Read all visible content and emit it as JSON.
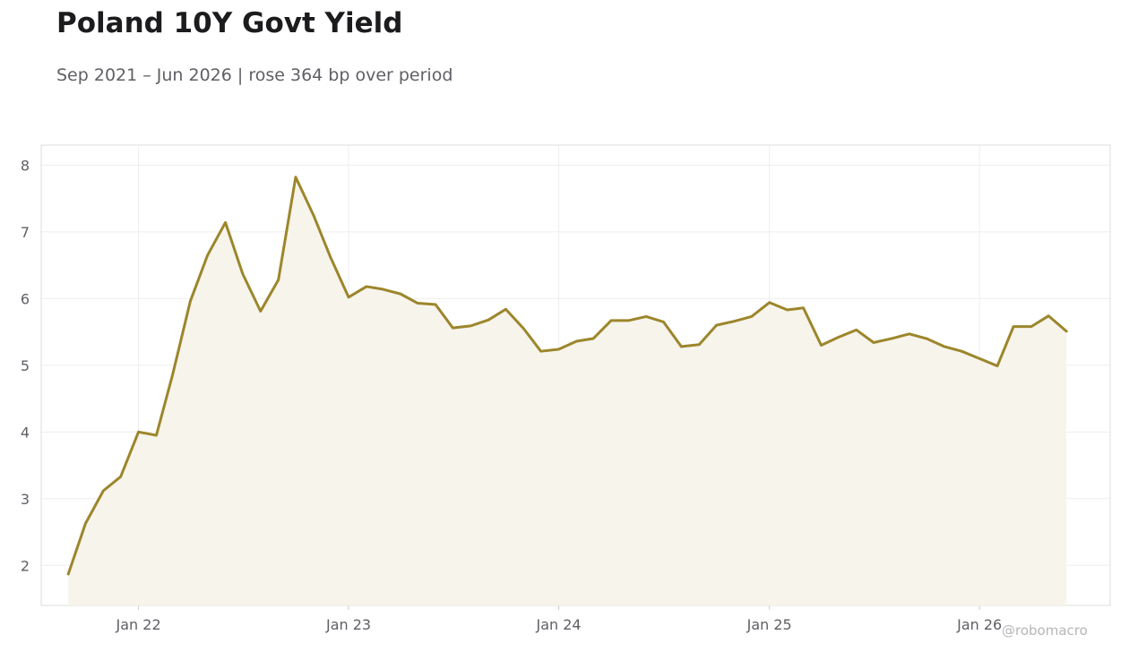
{
  "header": {
    "title": "Poland 10Y Govt Yield",
    "subtitle": "Sep 2021 – Jun 2026 | rose 364 bp over period"
  },
  "watermark": "@robomacro",
  "colors": {
    "line": "#9c862b",
    "fill": "#f7f4ec",
    "grid": "#eeeeee",
    "frame": "#dddddd",
    "text": "#5f6066"
  },
  "chart_data": {
    "type": "area",
    "title": "Poland 10Y Govt Yield",
    "subtitle": "Sep 2021 – Jun 2026 | rose 364 bp over period",
    "xlabel": "",
    "ylabel": "",
    "x_tick_labels": [
      "Jan 22",
      "Jan 23",
      "Jan 24",
      "Jan 25",
      "Jan 26"
    ],
    "y_ticks": [
      2,
      3,
      4,
      5,
      6,
      7,
      8
    ],
    "ylim": [
      1.4,
      8.3
    ],
    "xlim": [
      "2021-07-16",
      "2026-08-16"
    ],
    "grid": true,
    "legend": "none",
    "x": [
      "2021-09-01",
      "2021-10-01",
      "2021-11-01",
      "2021-12-01",
      "2022-01-01",
      "2022-02-01",
      "2022-03-01",
      "2022-04-01",
      "2022-05-01",
      "2022-06-01",
      "2022-07-01",
      "2022-08-01",
      "2022-09-01",
      "2022-10-01",
      "2022-11-01",
      "2022-12-01",
      "2023-01-01",
      "2023-02-01",
      "2023-03-01",
      "2023-04-01",
      "2023-05-01",
      "2023-06-01",
      "2023-07-01",
      "2023-08-01",
      "2023-09-01",
      "2023-10-01",
      "2023-11-01",
      "2023-12-01",
      "2024-01-01",
      "2024-02-01",
      "2024-03-01",
      "2024-04-01",
      "2024-05-01",
      "2024-06-01",
      "2024-07-01",
      "2024-08-01",
      "2024-09-01",
      "2024-10-01",
      "2024-11-01",
      "2024-12-01",
      "2025-01-01",
      "2025-02-01",
      "2025-03-01",
      "2025-04-01",
      "2025-05-01",
      "2025-06-01",
      "2025-07-01",
      "2025-08-01",
      "2025-09-01",
      "2025-10-01",
      "2025-11-01",
      "2025-12-01",
      "2026-01-01",
      "2026-02-01",
      "2026-03-01",
      "2026-04-01",
      "2026-05-01",
      "2026-06-01"
    ],
    "series": [
      {
        "values": [
          1.87,
          2.63,
          3.12,
          3.33,
          4.0,
          3.95,
          4.85,
          5.96,
          6.65,
          7.14,
          6.37,
          5.81,
          6.28,
          7.82,
          7.25,
          6.61,
          6.02,
          6.18,
          6.14,
          6.07,
          5.93,
          5.91,
          5.56,
          5.59,
          5.68,
          5.84,
          5.55,
          5.21,
          5.24,
          5.36,
          5.4,
          5.67,
          5.67,
          5.73,
          5.65,
          5.28,
          5.31,
          5.6,
          5.66,
          5.73,
          5.94,
          5.83,
          5.86,
          5.3,
          5.42,
          5.53,
          5.34,
          5.4,
          5.47,
          5.4,
          5.28,
          5.21,
          5.1,
          4.99,
          5.58,
          5.58,
          5.74,
          5.51
        ]
      }
    ]
  }
}
